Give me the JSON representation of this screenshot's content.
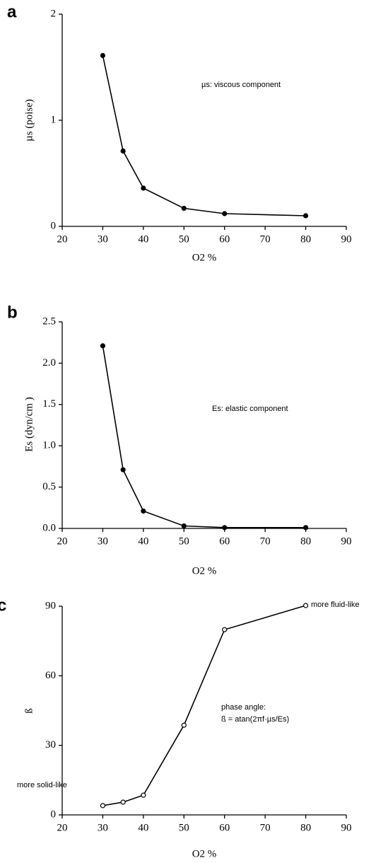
{
  "chart_data": [
    {
      "type": "line",
      "panel_label": "a",
      "x_label": "O2 %",
      "y_label": "µs (poise)",
      "annotations": [
        "µs: viscous component"
      ],
      "x": [
        30,
        35,
        40,
        50,
        60,
        80
      ],
      "values": [
        1.61,
        0.71,
        0.36,
        0.17,
        0.12,
        0.1
      ],
      "color": "#000000",
      "marker": "filled",
      "xlim": [
        20,
        90
      ],
      "xticks": [
        20,
        30,
        40,
        50,
        60,
        70,
        80,
        90
      ],
      "ylim": [
        0,
        2
      ],
      "yticks": [
        0,
        1,
        2
      ]
    },
    {
      "type": "line",
      "panel_label": "b",
      "x_label": "O2 %",
      "y_label": "Es (dyn/cm )",
      "annotations": [
        "Es: elastic component"
      ],
      "x": [
        30,
        35,
        40,
        50,
        60,
        80
      ],
      "values": [
        2.21,
        0.71,
        0.21,
        0.03,
        0.01,
        0.01
      ],
      "color": "#000000",
      "marker": "filled",
      "xlim": [
        20,
        90
      ],
      "xticks": [
        20,
        30,
        40,
        50,
        60,
        70,
        80,
        90
      ],
      "ylim": [
        0,
        2.5
      ],
      "yticks": [
        {
          "value": 0,
          "label": "0.0"
        },
        0.5,
        {
          "value": 1,
          "label": "1.0"
        },
        1.5,
        {
          "value": 2,
          "label": "2.0"
        },
        2.5
      ]
    },
    {
      "type": "line",
      "panel_label": "c",
      "x_label": "O2 %",
      "y_label": "ß",
      "annotations": [
        "more fluid-like",
        "more  solid-like",
        "phase angle:",
        "ß  =  atan(2πf·µs/Es)"
      ],
      "x": [
        30,
        35,
        40,
        50,
        60,
        80
      ],
      "values": [
        4,
        5.5,
        8.5,
        38.7,
        79.9,
        90.3
      ],
      "color": "#000000",
      "marker": "hollow",
      "xlim": [
        20,
        90
      ],
      "xticks": [
        20,
        30,
        40,
        50,
        60,
        70,
        80,
        90
      ],
      "ylim": [
        0,
        90
      ],
      "yticks": [
        0,
        30,
        60,
        90
      ]
    }
  ]
}
